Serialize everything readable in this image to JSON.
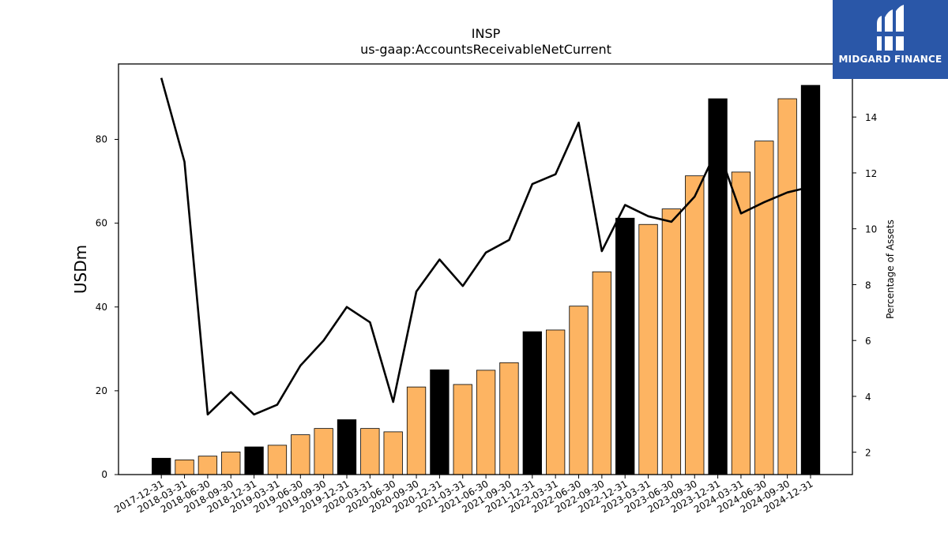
{
  "chart_data": {
    "type": "bar",
    "title": "INSP",
    "subtitle": "us-gaap:AccountsReceivableNetCurrent",
    "ylabel": "USDm",
    "y2label": "Percentage of Assets",
    "ylim": [
      0,
      98
    ],
    "y2lim": [
      1.2,
      15.9
    ],
    "yticks": [
      0,
      20,
      40,
      60,
      80
    ],
    "y2ticks": [
      2,
      4,
      6,
      8,
      10,
      12,
      14
    ],
    "categories": [
      "2017-12-31",
      "2018-03-31",
      "2018-06-30",
      "2018-09-30",
      "2018-12-31",
      "2019-03-31",
      "2019-06-30",
      "2019-09-30",
      "2019-12-31",
      "2020-03-31",
      "2020-06-30",
      "2020-09-30",
      "2020-12-31",
      "2021-03-31",
      "2021-06-30",
      "2021-09-30",
      "2021-12-31",
      "2022-03-31",
      "2022-06-30",
      "2022-09-30",
      "2022-12-31",
      "2023-03-31",
      "2023-06-30",
      "2023-09-30",
      "2023-12-31",
      "2024-03-31",
      "2024-06-30",
      "2024-09-30",
      "2024-12-31"
    ],
    "series": [
      {
        "type": "bar",
        "axis": "left",
        "values": [
          3.9,
          3.5,
          4.4,
          5.4,
          6.6,
          7.0,
          9.5,
          11.0,
          13.1,
          11.0,
          10.2,
          20.9,
          25.0,
          21.5,
          24.9,
          26.7,
          34.1,
          34.5,
          40.2,
          48.4,
          61.2,
          59.7,
          63.4,
          71.3,
          89.7,
          72.2,
          79.6,
          89.7,
          92.9
        ],
        "highlight": [
          true,
          false,
          false,
          false,
          true,
          false,
          false,
          false,
          true,
          false,
          false,
          false,
          true,
          false,
          false,
          false,
          true,
          false,
          false,
          false,
          true,
          false,
          false,
          false,
          true,
          false,
          false,
          false,
          true
        ],
        "color": "#fdb462",
        "highlight_color": "#000000"
      },
      {
        "type": "line",
        "axis": "right",
        "values": [
          15.4,
          12.4,
          3.35,
          4.15,
          3.35,
          3.7,
          5.1,
          6.0,
          7.2,
          6.65,
          3.8,
          7.75,
          8.9,
          7.95,
          9.15,
          9.6,
          11.6,
          11.95,
          13.8,
          9.2,
          10.85,
          10.45,
          10.25,
          11.15,
          12.9,
          10.55,
          10.95,
          11.3,
          11.5
        ],
        "color": "#000000"
      }
    ]
  },
  "logo": {
    "text": "MIDGARD FINANCE",
    "bg_color": "#2a57a8"
  }
}
